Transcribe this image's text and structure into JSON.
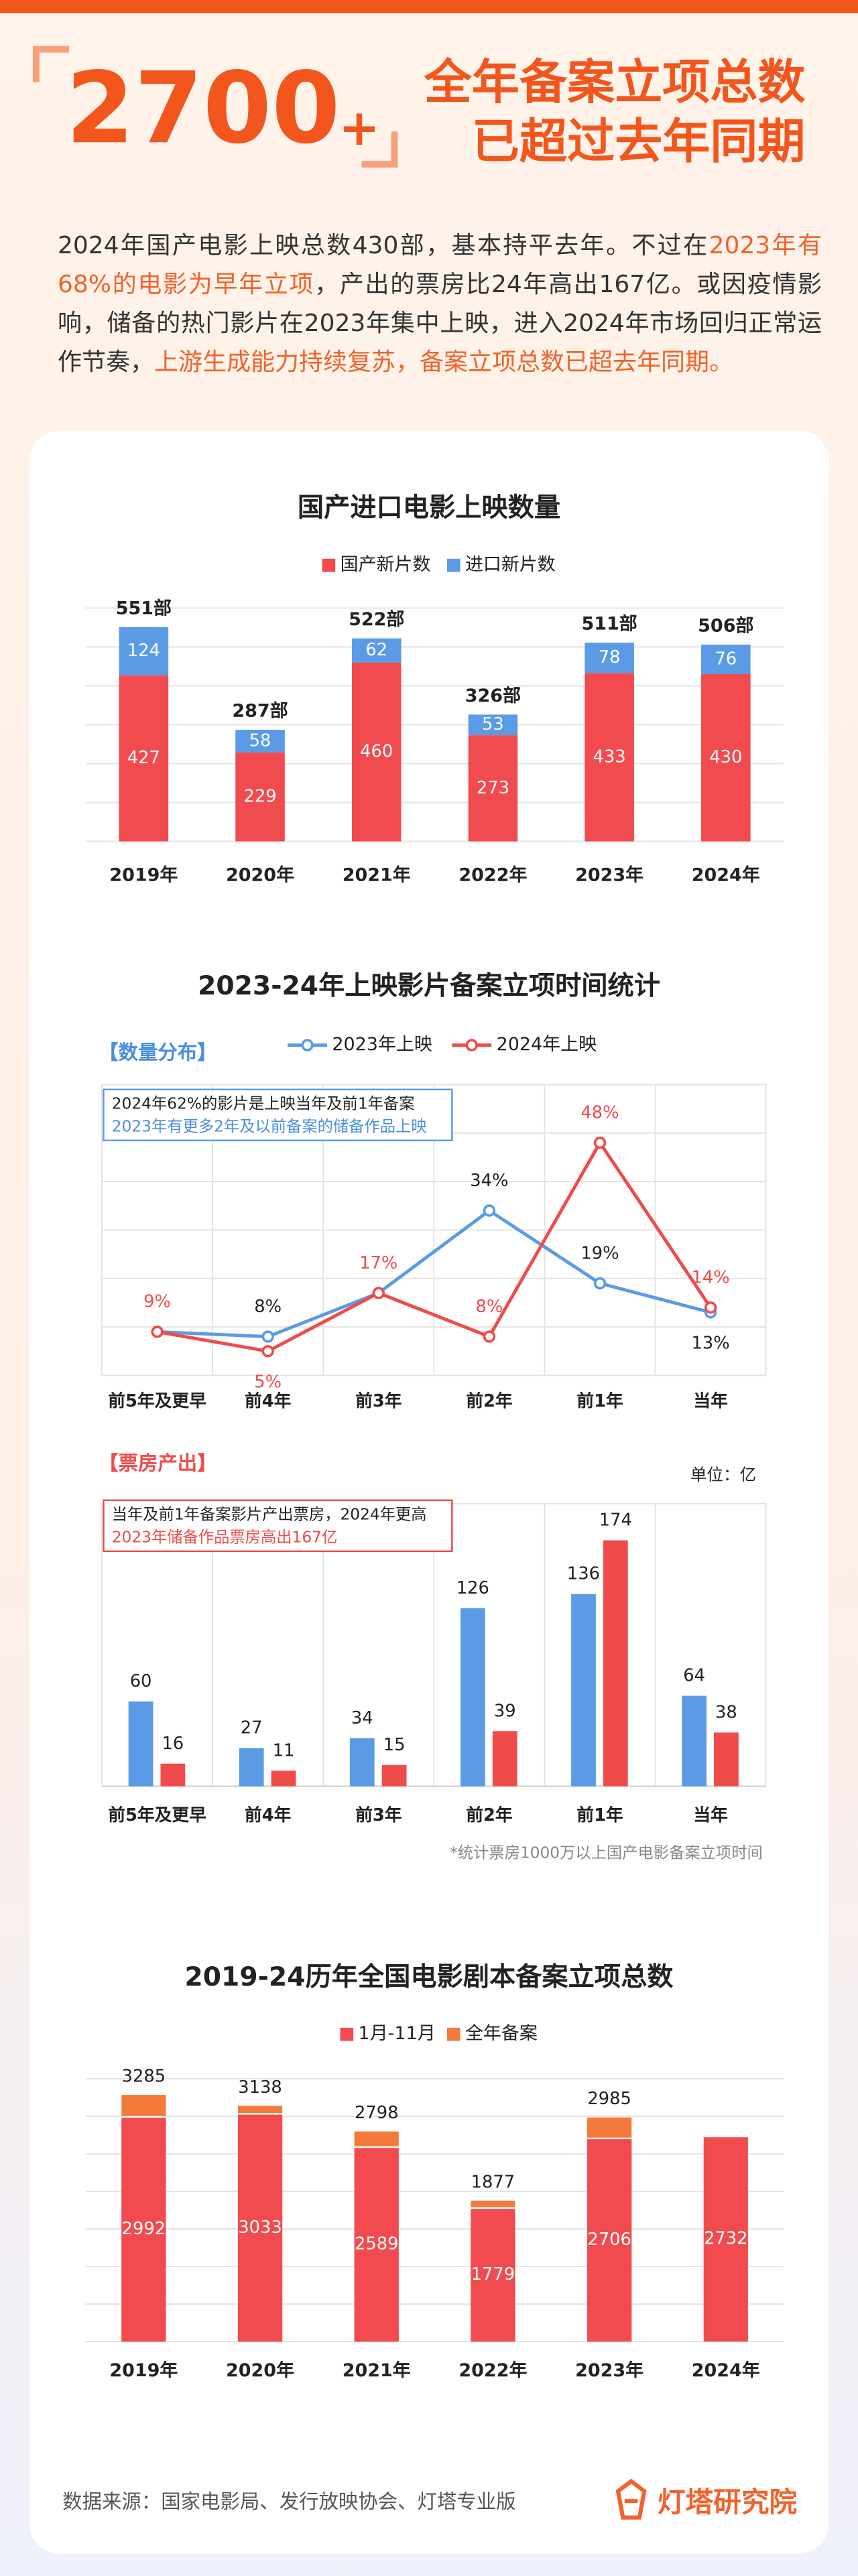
{
  "header": {
    "number": "2700",
    "plus": "+",
    "title_lines": [
      "全年备案立项总数",
      "已超过去年同期"
    ]
  },
  "intro": [
    {
      "text": "2024年国产电影上映总数430部，基本持平去年。不过在",
      "highlight": false
    },
    {
      "text": "2023年有68%的电影为早年立项",
      "highlight": true
    },
    {
      "text": "，产出的票房比24年高出167亿。或因疫情影响，储备的热门影片在2023年集中上映，进入2024年市场回归正常运作节奏，",
      "highlight": false
    },
    {
      "text": "上游生成能力持续复苏，备案立项总数已超去年同期。",
      "highlight": true
    }
  ],
  "chart_data": [
    {
      "type": "stacked_bar",
      "title": "国产进口电影上映数量",
      "categories": [
        "2019年",
        "2020年",
        "2021年",
        "2022年",
        "2023年",
        "2024年"
      ],
      "series": [
        {
          "name": "国产新片数",
          "color": "#f24b4f",
          "values": [
            427,
            229,
            460,
            273,
            433,
            430
          ]
        },
        {
          "name": "进口新片数",
          "color": "#5b9be6",
          "values": [
            124,
            58,
            62,
            53,
            78,
            76
          ]
        }
      ],
      "totals": [
        551,
        287,
        522,
        326,
        511,
        506
      ],
      "total_labels": [
        "551部",
        "287部",
        "522部",
        "326部",
        "511部",
        "506部"
      ],
      "ylim": [
        0,
        600
      ],
      "yticks": [
        0,
        100,
        200,
        300,
        400,
        500,
        600
      ],
      "grid": true
    },
    {
      "type": "line",
      "title": "2023-24年上映影片备案立项时间统计",
      "section_label": "【数量分布】",
      "categories": [
        "前5年及更早",
        "前4年",
        "前3年",
        "前2年",
        "前1年",
        "当年"
      ],
      "series": [
        {
          "name": "2023年上映",
          "color": "#5b9be6",
          "values": [
            9,
            8,
            17,
            34,
            19,
            13
          ],
          "value_labels": [
            null,
            "8%",
            null,
            "34%",
            "19%",
            "13%"
          ]
        },
        {
          "name": "2024年上映",
          "color": "#f04b4b",
          "values": [
            9,
            5,
            17,
            8,
            48,
            14
          ],
          "value_labels": [
            "9%",
            "5%",
            "17%",
            "8%",
            "48%",
            "14%"
          ]
        }
      ],
      "annotation": [
        "2024年62%的影片是上映当年及前1年备案",
        "2023年有更多2年及以前备案的储备作品上映"
      ],
      "ylim": [
        0,
        60
      ],
      "yticks": [
        0,
        10,
        20,
        30,
        40,
        50,
        60
      ],
      "grid": true
    },
    {
      "type": "grouped_bar",
      "section_label": "【票房产出】",
      "unit_label": "单位：亿",
      "categories": [
        "前5年及更早",
        "前4年",
        "前3年",
        "前2年",
        "前1年",
        "当年"
      ],
      "series": [
        {
          "color": "#5b9be6",
          "values": [
            60,
            27,
            34,
            126,
            136,
            64
          ]
        },
        {
          "color": "#f04b4b",
          "values": [
            16,
            11,
            15,
            39,
            174,
            38
          ]
        }
      ],
      "annotation": [
        "当年及前1年备案影片产出票房，2024年更高",
        "2023年储备作品票房高出167亿"
      ],
      "note": "*统计票房1000万以上国产电影备案立项时间",
      "ylim": [
        0,
        200
      ]
    },
    {
      "type": "overlap_bar",
      "title": "2019-24历年全国电影剧本备案立项总数",
      "categories": [
        "2019年",
        "2020年",
        "2021年",
        "2022年",
        "2023年",
        "2024年"
      ],
      "series": [
        {
          "name": "1月-11月",
          "color": "#f24b4f",
          "values": [
            2992,
            3033,
            2589,
            1779,
            2706,
            2732
          ]
        },
        {
          "name": "全年备案",
          "color": "#f47a3c",
          "values": [
            3285,
            3138,
            2798,
            1877,
            2985,
            null
          ]
        }
      ],
      "ylim": [
        0,
        3500
      ],
      "yticks": [
        0,
        500,
        1000,
        1500,
        2000,
        2500,
        3000,
        3500
      ],
      "grid": true
    }
  ],
  "footer": {
    "source": "数据来源：国家电影局、发行放映协会、灯塔专业版",
    "brand": "灯塔研究院"
  }
}
